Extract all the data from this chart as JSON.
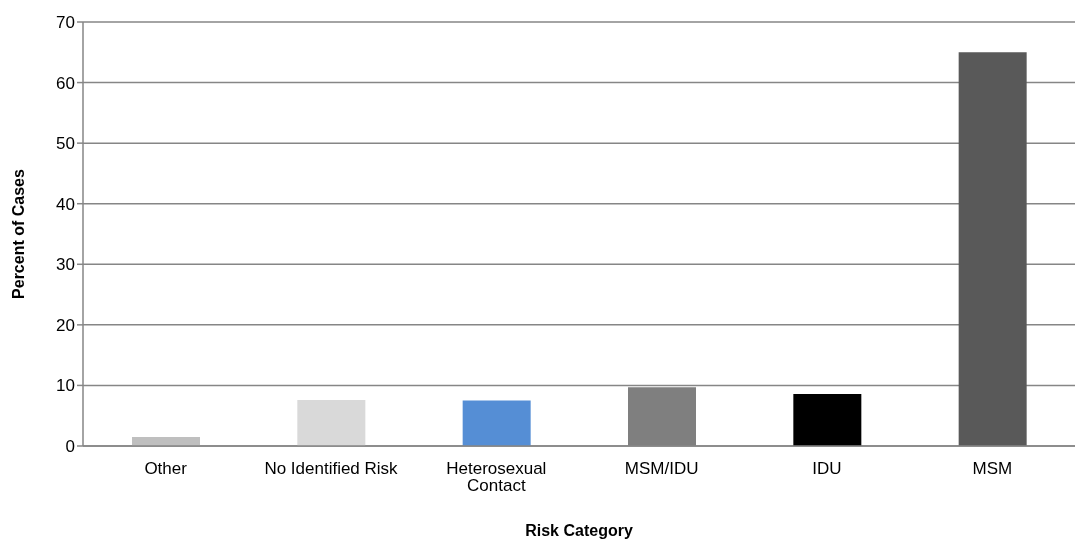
{
  "chart_data": {
    "type": "bar",
    "xlabel": "Risk Category",
    "ylabel": "Percent of Cases",
    "categories": [
      "Other",
      "No Identified Risk",
      "Heterosexual Contact",
      "MSM/IDU",
      "IDU",
      "MSM"
    ],
    "values": [
      1.5,
      7.6,
      7.5,
      9.7,
      8.6,
      65.0
    ],
    "colors": [
      "#bfbfbf",
      "#d9d9d9",
      "#558ed5",
      "#7f7f7f",
      "#000000",
      "#595959"
    ],
    "ylim": [
      0,
      70
    ],
    "yticks": [
      0,
      10,
      20,
      30,
      40,
      50,
      60,
      70
    ],
    "grid": "y"
  }
}
